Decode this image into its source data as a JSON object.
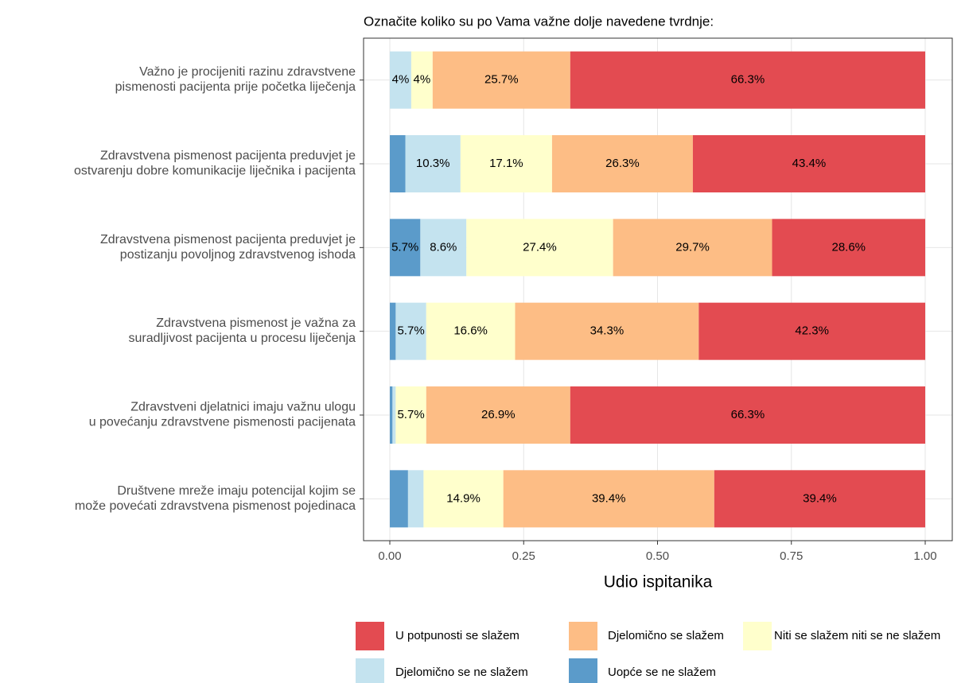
{
  "chart_data": {
    "type": "bar",
    "orientation": "horizontal",
    "stacked": true,
    "title": "Označite koliko su po Vama važne dolje navedene tvrdnje:",
    "x_label": "Udio ispitanika",
    "categories": [
      "Važno je procijeniti razinu zdravstvene\npismenosti pacijenta prije početka liječenja",
      "Zdravstvena pismenost pacijenta preduvjet je\nostvarenju dobre komunikacije liječnika i pacijenta",
      "Zdravstvena pismenost pacijenta preduvjet je\npostizanju povoljnog zdravstvenog ishoda",
      "Zdravstvena pismenost je važna za\nsuradljivost pacijenta u procesu liječenja",
      "Zdravstveni djelatnici imaju važnu ulogu\nu povećanju zdravstvene pismenosti pacijenata",
      "Društvene mreže imaju potencijal kojim se\nmože povećati zdravstvena pismenost pojedinaca"
    ],
    "series": [
      {
        "name": "Uopće se ne slažem",
        "color": "#5b9bca",
        "values": [
          0,
          0.029,
          0.057,
          0.011,
          0.005,
          0.034
        ],
        "value_labels": [
          null,
          null,
          "5.7%",
          null,
          null,
          null
        ]
      },
      {
        "name": "Djelomično se ne slažem",
        "color": "#c4e3ef",
        "values": [
          0.04,
          0.103,
          0.086,
          0.057,
          0.006,
          0.029
        ],
        "value_labels": [
          "4%",
          "10.3%",
          "8.6%",
          "5.7%",
          null,
          null
        ]
      },
      {
        "name": "Niti se slažem niti se ne slažem",
        "color": "#ffffcc",
        "values": [
          0.04,
          0.171,
          0.274,
          0.166,
          0.057,
          0.149
        ],
        "value_labels": [
          "4%",
          "17.1%",
          "27.4%",
          "16.6%",
          "5.7%",
          "14.9%"
        ]
      },
      {
        "name": "Djelomično se slažem",
        "color": "#fdbd85",
        "values": [
          0.257,
          0.263,
          0.297,
          0.343,
          0.269,
          0.394
        ],
        "value_labels": [
          "25.7%",
          "26.3%",
          "29.7%",
          "34.3%",
          "26.9%",
          "39.4%"
        ]
      },
      {
        "name": "U potpunosti se slažem",
        "color": "#e34b51",
        "values": [
          0.663,
          0.434,
          0.286,
          0.423,
          0.663,
          0.394
        ],
        "value_labels": [
          "66.3%",
          "43.4%",
          "28.6%",
          "42.3%",
          "66.3%",
          "39.4%"
        ]
      }
    ],
    "xlim": [
      0,
      1
    ],
    "xticks": [
      {
        "value": 0,
        "label": "0.00"
      },
      {
        "value": 0.25,
        "label": "0.25"
      },
      {
        "value": 0.5,
        "label": "0.50"
      },
      {
        "value": 0.75,
        "label": "0.75"
      },
      {
        "value": 1,
        "label": "1.00"
      }
    ],
    "grid": true,
    "legend": "bottom"
  }
}
